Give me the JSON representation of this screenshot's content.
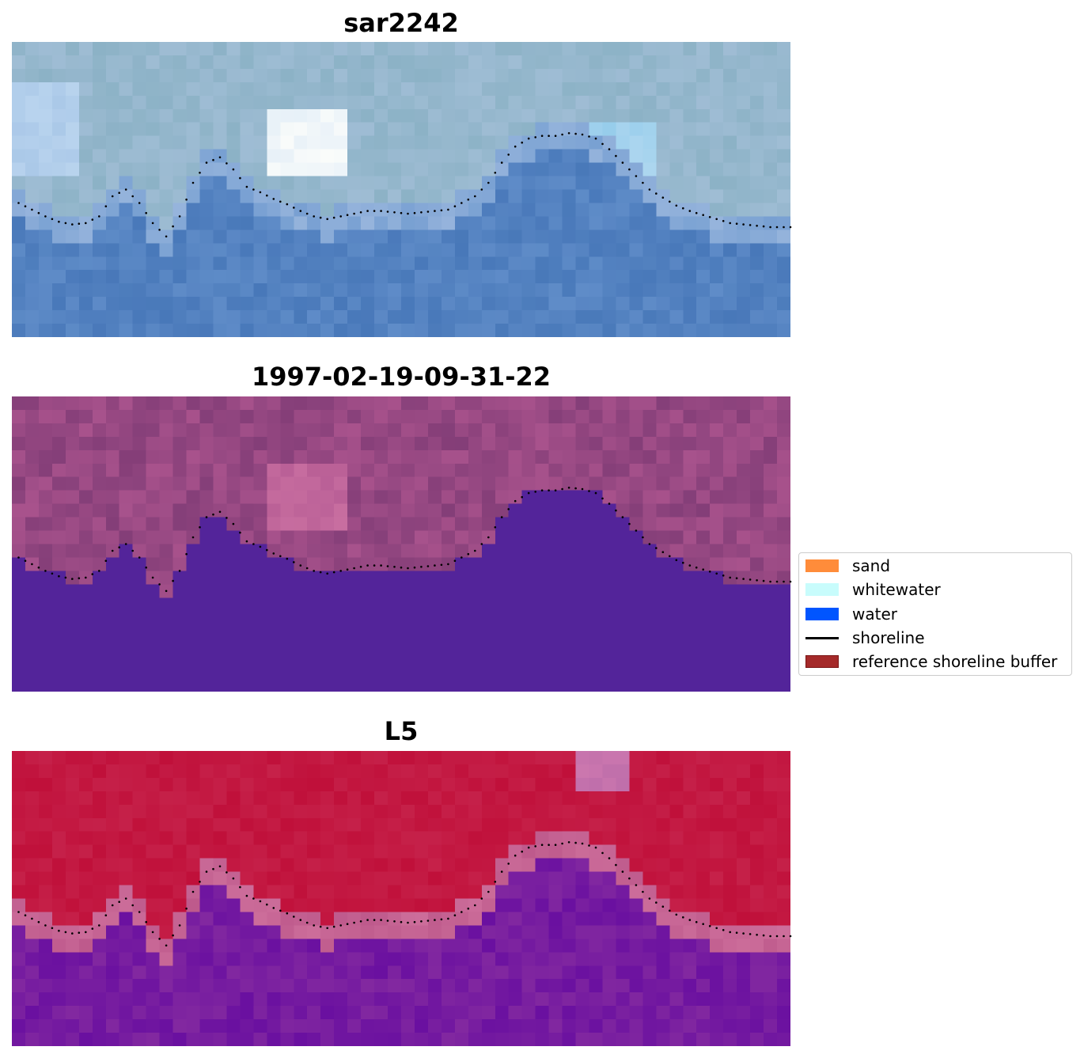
{
  "panels": [
    {
      "title": "sar2242",
      "style": "rgb"
    },
    {
      "title": "1997-02-19-09-31-22",
      "style": "classified"
    },
    {
      "title": "L5",
      "style": "index"
    }
  ],
  "legend": {
    "items": [
      {
        "label": "sand",
        "color": "#ff8c3a",
        "kind": "patch"
      },
      {
        "label": "whitewater",
        "color": "#c8fcfc",
        "kind": "patch"
      },
      {
        "label": "water",
        "color": "#0055ff",
        "kind": "patch"
      },
      {
        "label": "shoreline",
        "color": "#000000",
        "kind": "line"
      },
      {
        "label": "reference shoreline buffer",
        "color": "#a52a2a",
        "kind": "patch",
        "edge": "#7a1414"
      }
    ]
  },
  "colors": {
    "classified_water": "#53249a",
    "classified_land": "#93467e",
    "index_high": "#c0103a",
    "index_low": "#6a10a0",
    "rgb_water": "#4d7fbf",
    "rgb_land": "#8fb3c7"
  }
}
